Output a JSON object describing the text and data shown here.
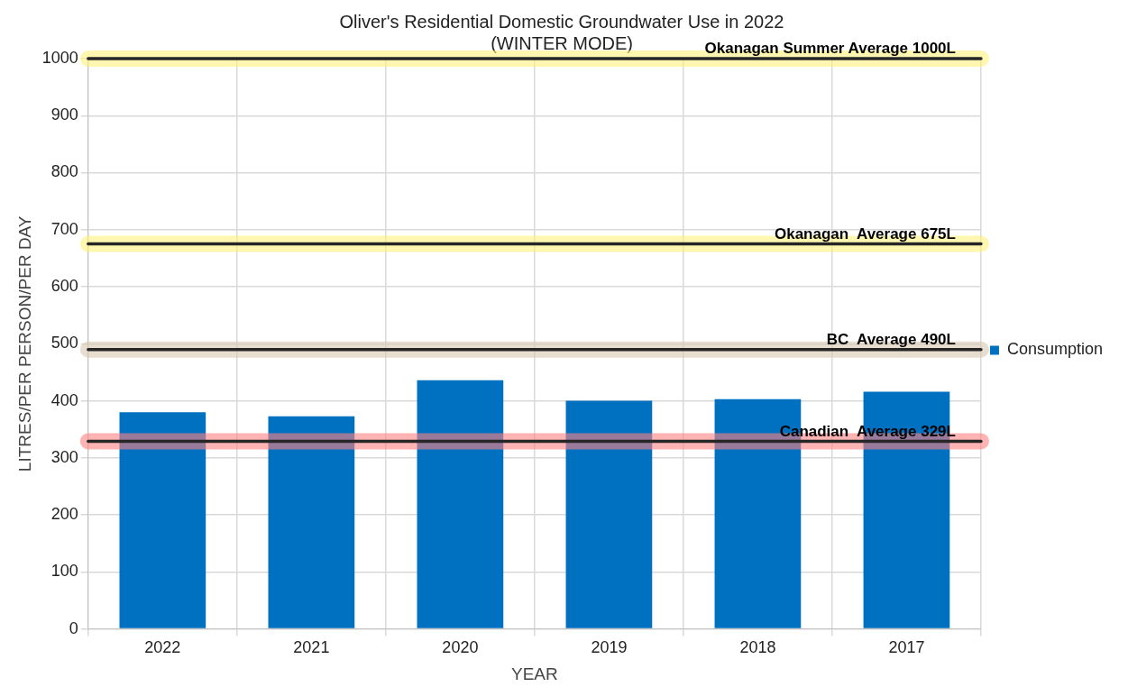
{
  "chart_data": {
    "type": "bar",
    "title": [
      "Oliver's Residential Domestic Groundwater Use in 2022",
      "(WINTER MODE)"
    ],
    "xlabel": "YEAR",
    "ylabel": "LITRES/PER PERSON/PER DAY",
    "categories": [
      "2022",
      "2021",
      "2020",
      "2019",
      "2018",
      "2017"
    ],
    "series": [
      {
        "name": "Consumption",
        "color": "#0070c0",
        "values": [
          380,
          373,
          436,
          400,
          403,
          416
        ]
      }
    ],
    "ylim": [
      0,
      1000
    ],
    "yticks": [
      0,
      100,
      200,
      300,
      400,
      500,
      600,
      700,
      800,
      900,
      1000
    ],
    "grid": true,
    "legend": "right",
    "ref_lines": [
      {
        "axis": "y",
        "value": 1000,
        "label": "Okanagan Summer Average 1000L",
        "color": "#fff27a"
      },
      {
        "axis": "y",
        "value": 675,
        "label": "Okanagan  Average 675L",
        "color": "#fff27a"
      },
      {
        "axis": "y",
        "value": 490,
        "label": "BC  Average 490L",
        "color": "#d9c8b0"
      },
      {
        "axis": "y",
        "value": 329,
        "label": "Canadian  Average 329L",
        "color": "#ff8080"
      }
    ]
  }
}
